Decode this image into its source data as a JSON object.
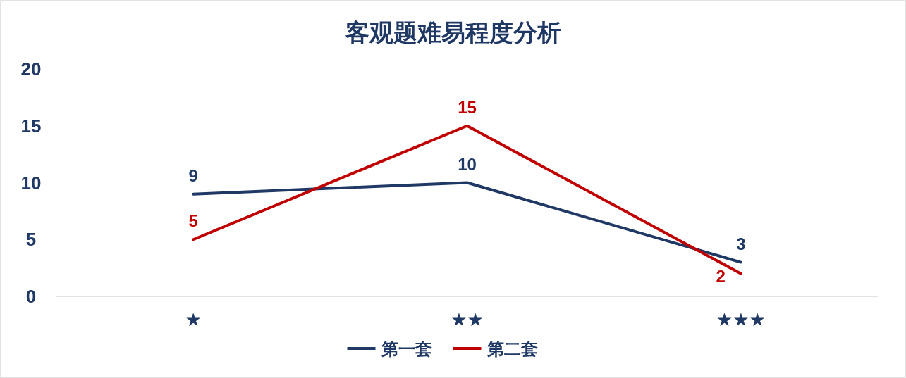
{
  "chart_data": {
    "type": "line",
    "title": "客观题难易程度分析",
    "categories": [
      "★",
      "★★",
      "★★★"
    ],
    "series": [
      {
        "name": "第一套",
        "color": "#203864",
        "values": [
          9,
          10,
          3
        ]
      },
      {
        "name": "第二套",
        "color": "#c00000",
        "values": [
          5,
          15,
          2
        ]
      }
    ],
    "ylim": [
      0,
      20
    ],
    "yticks": [
      0,
      5,
      10,
      15,
      20
    ],
    "grid": false,
    "legend": "bottom",
    "data_labels": true,
    "marker": "none",
    "line_style": "solid"
  }
}
